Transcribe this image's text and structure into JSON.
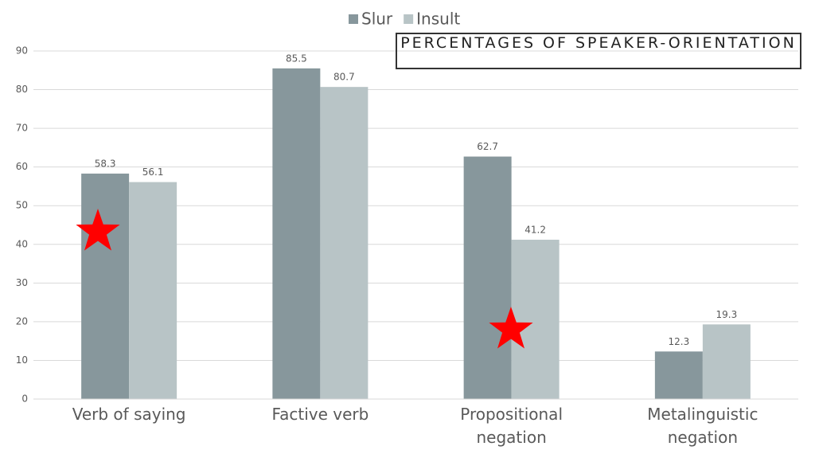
{
  "chart_data": {
    "type": "bar",
    "title": "PERCENTAGES OF SPEAKER-ORIENTATION",
    "categories": [
      "Verb of saying",
      "Factive verb",
      "Propositional negation",
      "Metalinguistic negation"
    ],
    "series": [
      {
        "name": "Slur",
        "color": "#87979c",
        "values": [
          58.3,
          85.5,
          62.7,
          12.3
        ]
      },
      {
        "name": "Insult",
        "color": "#b8c4c6",
        "values": [
          56.1,
          80.7,
          41.2,
          19.3
        ]
      }
    ],
    "ylim": [
      0,
      90
    ],
    "yticks": [
      0,
      10,
      20,
      30,
      40,
      50,
      60,
      70,
      80,
      90
    ],
    "grid": true,
    "legend": "top"
  }
}
